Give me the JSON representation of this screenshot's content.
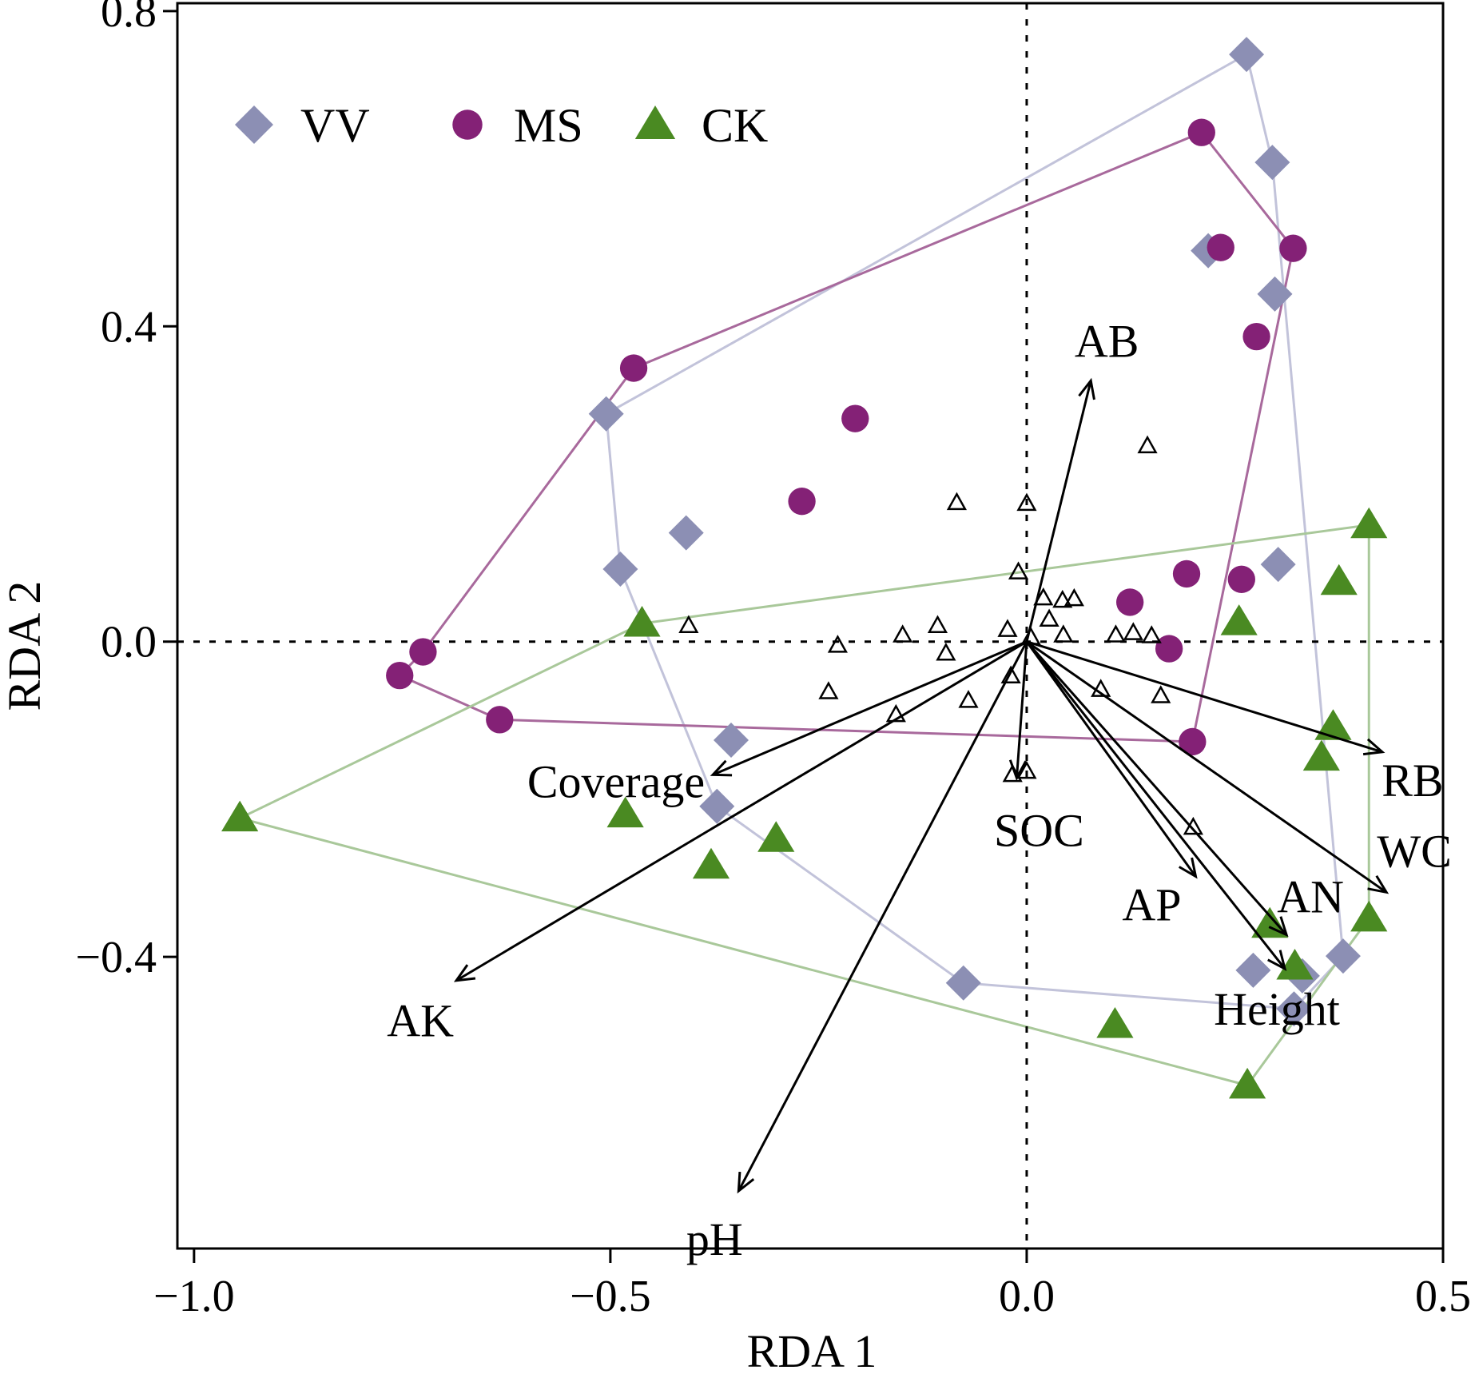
{
  "chart_data": {
    "type": "scatter",
    "title": "",
    "xlabel": "RDA 1",
    "ylabel": "RDA 2",
    "xlim": [
      -1.02,
      0.5
    ],
    "ylim": [
      -0.77,
      0.81
    ],
    "xticks": [
      -1.0,
      -0.5,
      0.0,
      0.5
    ],
    "yticks": [
      -0.4,
      0.0,
      0.4,
      0.8
    ],
    "xtick_labels": [
      "−1.0",
      "−0.5",
      "0.0",
      "0.5"
    ],
    "ytick_labels": [
      "−0.4",
      "0.0",
      "0.4",
      "0.8"
    ],
    "reference_lines": {
      "x": 0,
      "y": 0,
      "style": "dotted"
    },
    "grid": false,
    "legend_position": "top-left",
    "series": [
      {
        "name": "VV",
        "marker": "diamond",
        "color": "#8c8fb4",
        "hull_color": "#c2c3da",
        "points": [
          [
            0.264,
            0.745
          ],
          [
            0.295,
            0.608
          ],
          [
            0.218,
            0.496
          ],
          [
            0.298,
            0.441
          ],
          [
            -0.505,
            0.289
          ],
          [
            -0.409,
            0.138
          ],
          [
            -0.488,
            0.092
          ],
          [
            0.302,
            0.098
          ],
          [
            -0.355,
            -0.125
          ],
          [
            -0.372,
            -0.209
          ],
          [
            0.38,
            -0.399
          ],
          [
            0.272,
            -0.417
          ],
          [
            0.331,
            -0.424
          ],
          [
            -0.076,
            -0.433
          ],
          [
            0.321,
            -0.466
          ]
        ],
        "hull": [
          [
            0.264,
            0.745
          ],
          [
            0.295,
            0.608
          ],
          [
            0.38,
            -0.399
          ],
          [
            0.321,
            -0.466
          ],
          [
            -0.076,
            -0.433
          ],
          [
            -0.372,
            -0.209
          ],
          [
            -0.488,
            0.092
          ],
          [
            -0.505,
            0.289
          ]
        ]
      },
      {
        "name": "MS",
        "marker": "circle",
        "color": "#842176",
        "hull_color": "#a8699c",
        "points": [
          [
            0.21,
            0.646
          ],
          [
            0.233,
            0.5
          ],
          [
            0.32,
            0.499
          ],
          [
            0.276,
            0.387
          ],
          [
            -0.472,
            0.347
          ],
          [
            -0.206,
            0.283
          ],
          [
            -0.27,
            0.178
          ],
          [
            0.192,
            0.086
          ],
          [
            0.258,
            0.079
          ],
          [
            0.124,
            0.05
          ],
          [
            0.171,
            -0.009
          ],
          [
            -0.725,
            -0.013
          ],
          [
            -0.753,
            -0.043
          ],
          [
            -0.633,
            -0.099
          ],
          [
            0.199,
            -0.127
          ]
        ],
        "hull": [
          [
            0.21,
            0.646
          ],
          [
            0.32,
            0.499
          ],
          [
            0.199,
            -0.127
          ],
          [
            -0.633,
            -0.099
          ],
          [
            -0.753,
            -0.043
          ],
          [
            -0.725,
            -0.013
          ],
          [
            -0.472,
            0.347
          ]
        ]
      },
      {
        "name": "CK",
        "marker": "triangle",
        "color": "#4a8a22",
        "hull_color": "#a9c89a",
        "points": [
          [
            0.411,
            0.148
          ],
          [
            0.375,
            0.076
          ],
          [
            0.255,
            0.025
          ],
          [
            -0.462,
            0.023
          ],
          [
            0.368,
            -0.108
          ],
          [
            0.354,
            -0.147
          ],
          [
            -0.482,
            -0.219
          ],
          [
            -0.301,
            -0.25
          ],
          [
            -0.379,
            -0.284
          ],
          [
            0.411,
            -0.351
          ],
          [
            0.292,
            -0.359
          ],
          [
            0.322,
            -0.412
          ],
          [
            0.106,
            -0.486
          ],
          [
            0.265,
            -0.563
          ],
          [
            -0.945,
            -0.224
          ]
        ],
        "hull": [
          [
            0.411,
            0.148
          ],
          [
            0.411,
            -0.351
          ],
          [
            0.265,
            -0.563
          ],
          [
            -0.945,
            -0.224
          ],
          [
            -0.462,
            0.023
          ]
        ]
      },
      {
        "name": "",
        "marker": "open-triangle",
        "color": "#000000",
        "points": [
          [
            0.145,
            0.248
          ],
          [
            -0.084,
            0.176
          ],
          [
            0.0,
            0.175
          ],
          [
            -0.01,
            0.088
          ],
          [
            0.02,
            0.055
          ],
          [
            0.043,
            0.052
          ],
          [
            0.057,
            0.054
          ],
          [
            -0.406,
            0.02
          ],
          [
            -0.107,
            0.02
          ],
          [
            0.027,
            0.028
          ],
          [
            -0.023,
            0.015
          ],
          [
            -0.149,
            0.008
          ],
          [
            0.044,
            0.008
          ],
          [
            0.107,
            0.008
          ],
          [
            0.128,
            0.011
          ],
          [
            0.15,
            0.007
          ],
          [
            -0.227,
            -0.005
          ],
          [
            -0.097,
            -0.015
          ],
          [
            0.005,
            0.005
          ],
          [
            -0.238,
            -0.064
          ],
          [
            -0.019,
            -0.044
          ],
          [
            -0.07,
            -0.075
          ],
          [
            -0.157,
            -0.093
          ],
          [
            0.089,
            -0.061
          ],
          [
            0.161,
            -0.069
          ],
          [
            -0.017,
            -0.169
          ],
          [
            0.0,
            -0.165
          ],
          [
            0.2,
            -0.236
          ]
        ]
      }
    ],
    "arrows": [
      {
        "label": "AB",
        "from": [
          0,
          0
        ],
        "to": [
          0.077,
          0.331
        ]
      },
      {
        "label": "Coverage",
        "from": [
          0,
          0
        ],
        "to": [
          -0.377,
          -0.169
        ]
      },
      {
        "label": "AK",
        "from": [
          0,
          0
        ],
        "to": [
          -0.685,
          -0.43
        ]
      },
      {
        "label": "pH",
        "from": [
          0,
          0
        ],
        "to": [
          -0.346,
          -0.697
        ]
      },
      {
        "label": "SOC",
        "from": [
          0,
          0
        ],
        "to": [
          -0.012,
          -0.173
        ]
      },
      {
        "label": "RB",
        "from": [
          0,
          0
        ],
        "to": [
          0.427,
          -0.14
        ]
      },
      {
        "label": "WC",
        "from": [
          0,
          0
        ],
        "to": [
          0.432,
          -0.318
        ]
      },
      {
        "label": "AP",
        "from": [
          0,
          0
        ],
        "to": [
          0.203,
          -0.298
        ]
      },
      {
        "label": "AN",
        "from": [
          0,
          0
        ],
        "to": [
          0.312,
          -0.372
        ]
      },
      {
        "label": "Height",
        "from": [
          0,
          0
        ],
        "to": [
          0.31,
          -0.415
        ]
      }
    ]
  }
}
